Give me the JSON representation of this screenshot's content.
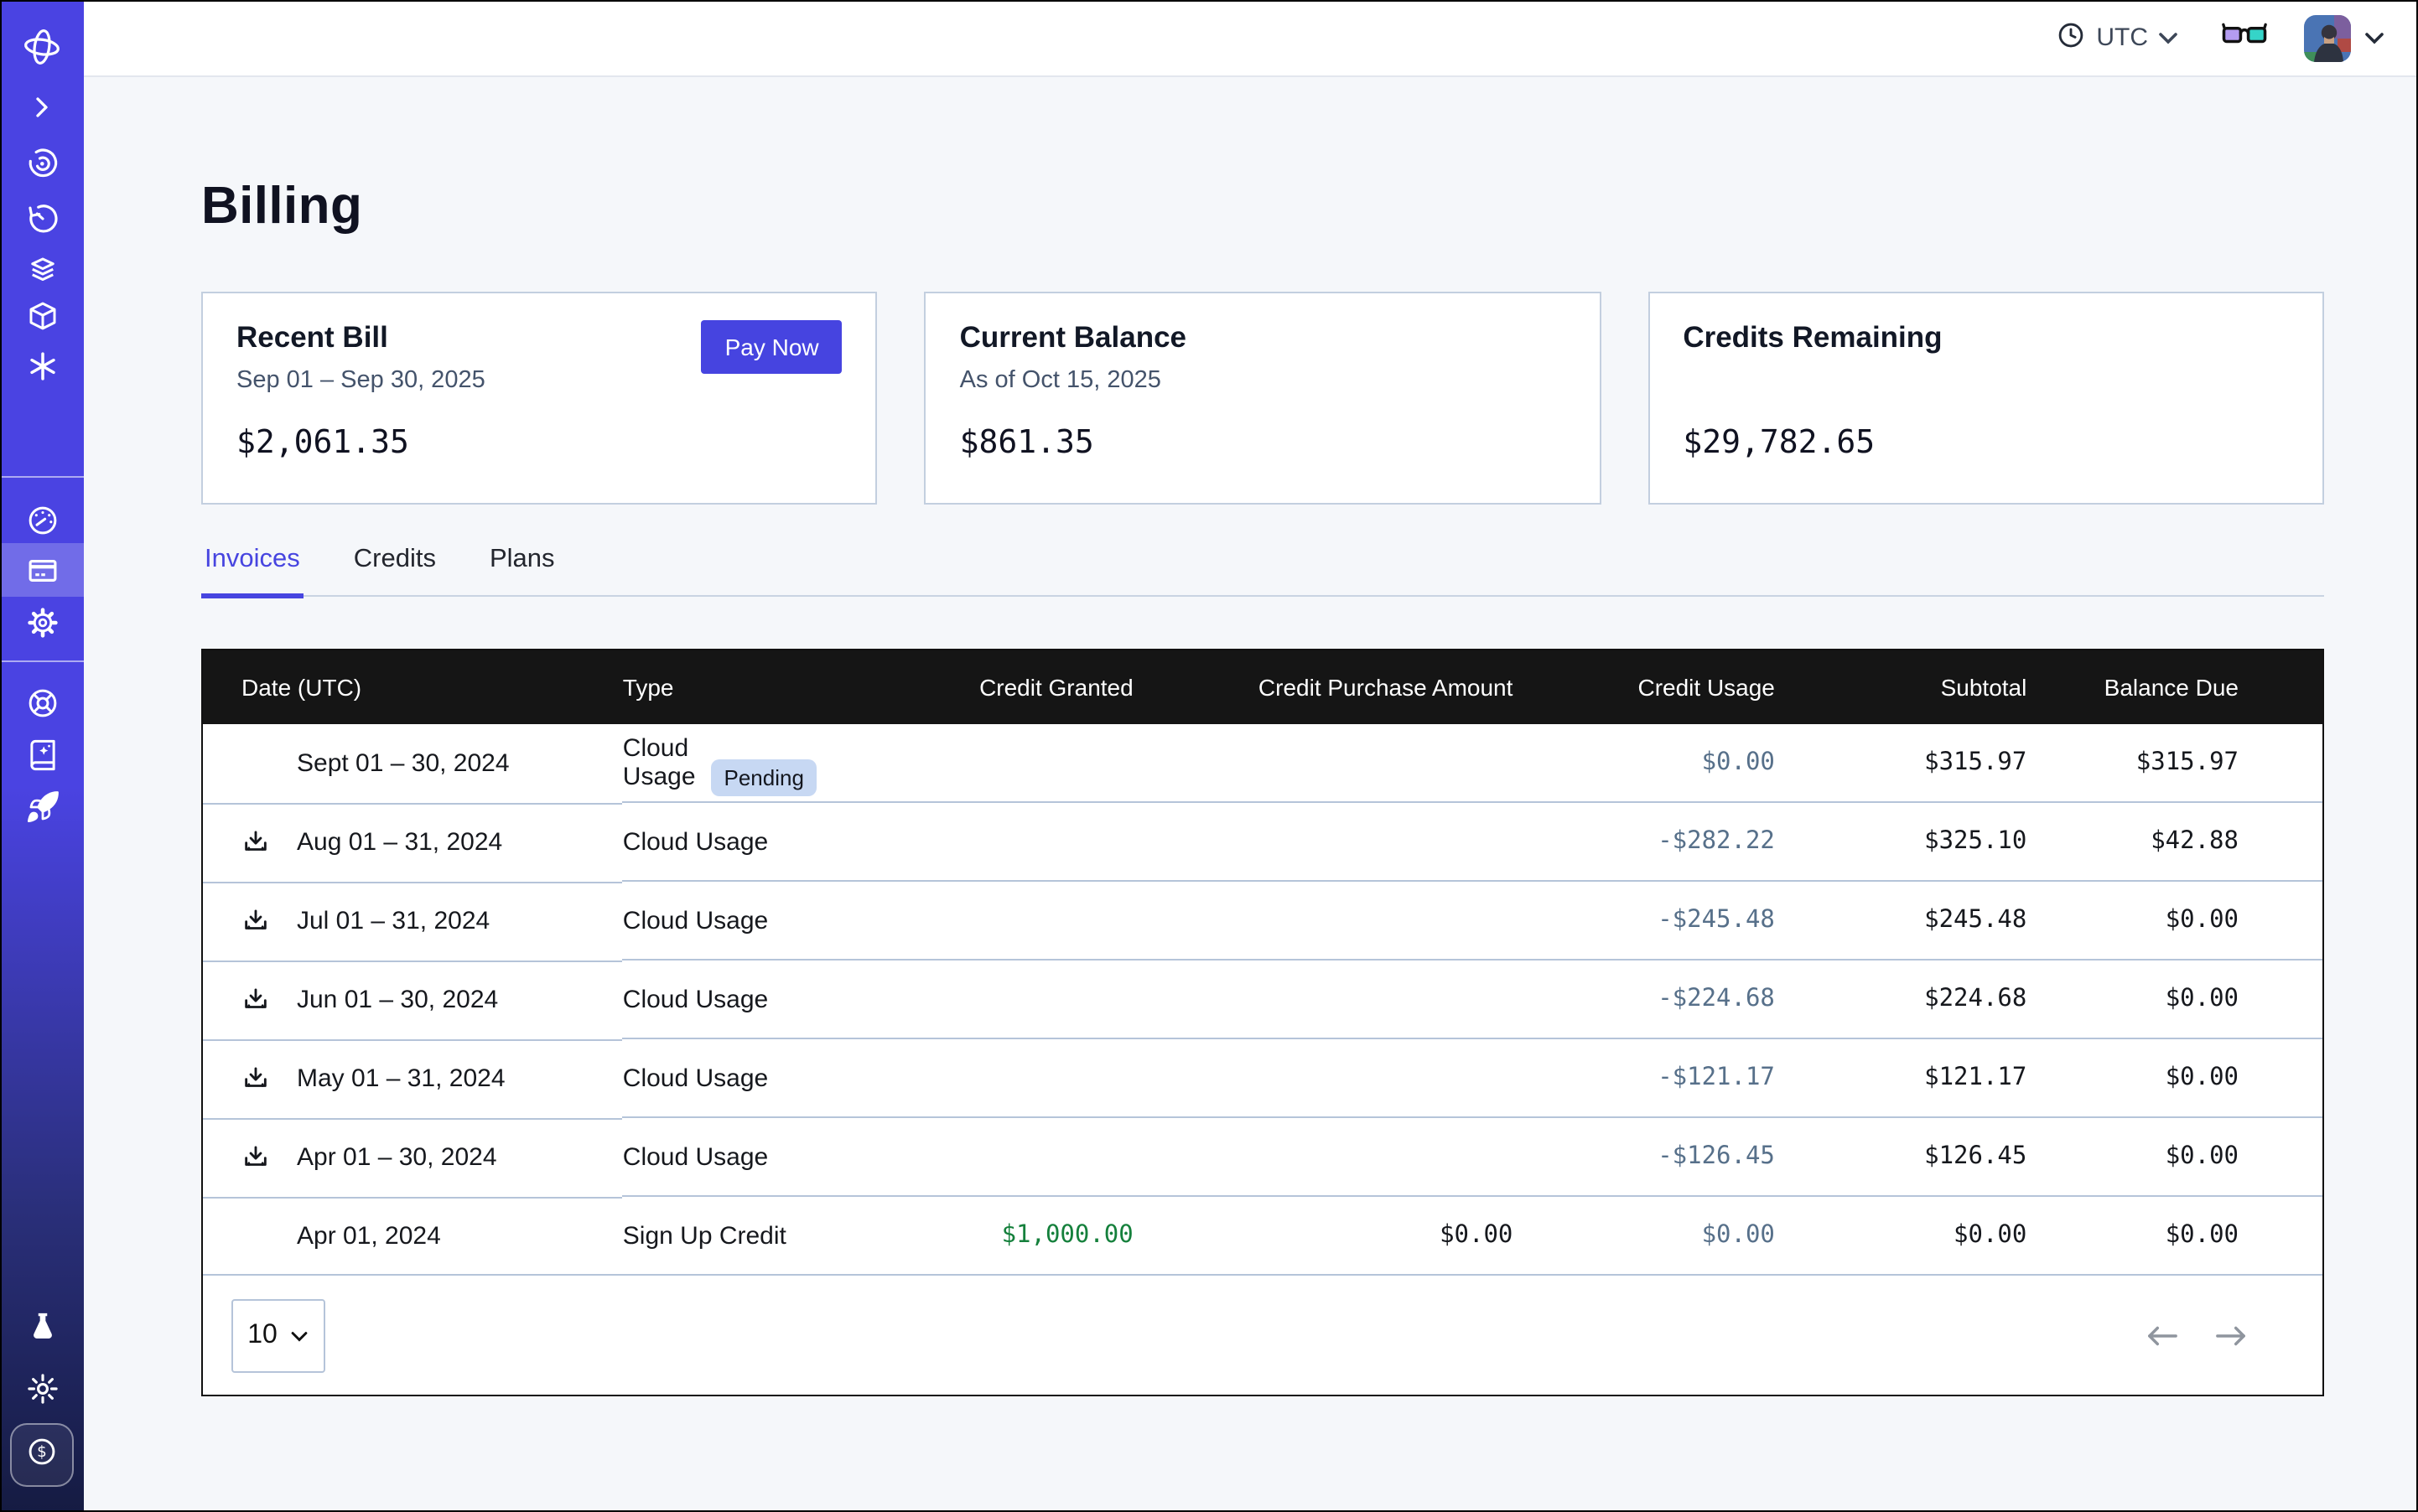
{
  "topbar": {
    "timezone_label": "UTC",
    "icons": [
      "clock-icon",
      "chevron-down-icon",
      "3d-glasses-icon",
      "avatar",
      "chevron-down-icon"
    ]
  },
  "page": {
    "title": "Billing"
  },
  "summary_cards": [
    {
      "title": "Recent Bill",
      "subtitle": "Sep 01 – Sep 30, 2025",
      "amount": "$2,061.35",
      "action_label": "Pay Now"
    },
    {
      "title": "Current Balance",
      "subtitle": "As of Oct 15, 2025",
      "amount": "$861.35"
    },
    {
      "title": "Credits Remaining",
      "subtitle": "",
      "amount": "$29,782.65"
    }
  ],
  "tabs": [
    {
      "label": "Invoices",
      "active": true
    },
    {
      "label": "Credits",
      "active": false
    },
    {
      "label": "Plans",
      "active": false
    }
  ],
  "invoice_table": {
    "columns": [
      "Date (UTC)",
      "Type",
      "Credit Granted",
      "Credit Purchase Amount",
      "Credit Usage",
      "Subtotal",
      "Balance Due"
    ],
    "rows": [
      {
        "date": "Sept 01 – 30, 2024",
        "type": "Cloud Usage",
        "badge": "Pending",
        "download": false,
        "credit_granted": "",
        "credit_purchase_amount": "",
        "credit_usage": "$0.00",
        "subtotal": "$315.97",
        "balance_due": "$315.97"
      },
      {
        "date": "Aug 01 – 31, 2024",
        "type": "Cloud Usage",
        "download": true,
        "credit_granted": "",
        "credit_purchase_amount": "",
        "credit_usage": "-$282.22",
        "subtotal": "$325.10",
        "balance_due": "$42.88"
      },
      {
        "date": "Jul 01 – 31, 2024",
        "type": "Cloud Usage",
        "download": true,
        "credit_granted": "",
        "credit_purchase_amount": "",
        "credit_usage": "-$245.48",
        "subtotal": "$245.48",
        "balance_due": "$0.00"
      },
      {
        "date": "Jun 01 – 30, 2024",
        "type": "Cloud Usage",
        "download": true,
        "credit_granted": "",
        "credit_purchase_amount": "",
        "credit_usage": "-$224.68",
        "subtotal": "$224.68",
        "balance_due": "$0.00"
      },
      {
        "date": "May 01 – 31, 2024",
        "type": "Cloud Usage",
        "download": true,
        "credit_granted": "",
        "credit_purchase_amount": "",
        "credit_usage": "-$121.17",
        "subtotal": "$121.17",
        "balance_due": "$0.00"
      },
      {
        "date": "Apr 01 – 30, 2024",
        "type": "Cloud Usage",
        "download": true,
        "credit_granted": "",
        "credit_purchase_amount": "",
        "credit_usage": "-$126.45",
        "subtotal": "$126.45",
        "balance_due": "$0.00"
      },
      {
        "date": "Apr 01, 2024",
        "type": "Sign Up Credit",
        "download": false,
        "credit_granted": "$1,000.00",
        "credit_purchase_amount": "$0.00",
        "credit_usage": "$0.00",
        "subtotal": "$0.00",
        "balance_due": "$0.00"
      }
    ]
  },
  "pagination": {
    "page_size": "10"
  },
  "sidebar": {
    "active_item": "billing",
    "icons_top": [
      "orbit-logo",
      "chevron-right",
      "radar",
      "timer",
      "layers",
      "cube",
      "asterisk"
    ],
    "icons_middle": [
      "gauge",
      "billing-card",
      "gear"
    ],
    "icons_lower": [
      "lifebuoy",
      "book-sparkles",
      "rocket"
    ],
    "icons_bottom": [
      "flask",
      "sun",
      "dollar-badge"
    ]
  },
  "colors": {
    "accent": "#4644E0",
    "sidebar_top": "#4A43E2",
    "sidebar_bottom": "#151B42",
    "table_header_bg": "#151515",
    "row_divider": "#B5C4D9",
    "credit_usage_text": "#57708A",
    "credit_granted_green": "#15803C",
    "pending_badge_bg": "#C7D8F3",
    "page_bg": "#F5F7FA",
    "glasses_left_lens": "#B49CF0",
    "glasses_right_lens": "#35D4C8"
  }
}
